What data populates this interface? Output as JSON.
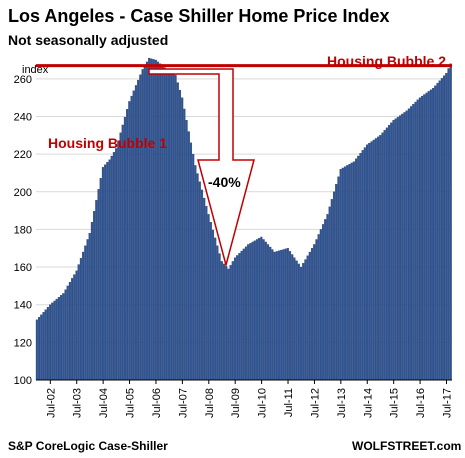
{
  "chart_data": {
    "type": "bar",
    "title": "Los Angeles - Case Shiller Home Price Index",
    "subtitle": "Not seasonally adjusted",
    "ylabel": "index",
    "ylim": [
      100,
      270
    ],
    "yticks": [
      100,
      120,
      140,
      160,
      180,
      200,
      220,
      240,
      260
    ],
    "xticks": [
      "Jul-02",
      "Jul-03",
      "Jul-04",
      "Jul-05",
      "Jul-06",
      "Jul-07",
      "Jul-08",
      "Jul-09",
      "Jul-10",
      "Jul-11",
      "Jul-12",
      "Jul-13",
      "Jul-14",
      "Jul-15",
      "Jul-16",
      "Jul-17"
    ],
    "series_color": "#2f5597",
    "reference_line": {
      "value": 267,
      "color": "#c00000",
      "label": "Housing Bubble 2"
    },
    "annotations": {
      "bubble1": "Housing Bubble 1",
      "drop": "-40%"
    },
    "source": "S&P CoreLogic Case-Shiller",
    "brand": "WOLFSTREET.com",
    "anchors": [
      [
        "2002-01",
        132
      ],
      [
        "2002-07",
        140
      ],
      [
        "2003-01",
        146
      ],
      [
        "2003-07",
        158
      ],
      [
        "2004-01",
        178
      ],
      [
        "2004-07",
        213
      ],
      [
        "2004-10",
        217
      ],
      [
        "2005-01",
        223
      ],
      [
        "2005-07",
        248
      ],
      [
        "2006-01",
        265
      ],
      [
        "2006-04",
        271
      ],
      [
        "2006-07",
        270
      ],
      [
        "2007-01",
        264
      ],
      [
        "2007-04",
        262
      ],
      [
        "2007-07",
        250
      ],
      [
        "2008-01",
        214
      ],
      [
        "2008-07",
        188
      ],
      [
        "2009-01",
        163
      ],
      [
        "2009-04",
        159
      ],
      [
        "2009-07",
        165
      ],
      [
        "2010-01",
        172
      ],
      [
        "2010-07",
        176
      ],
      [
        "2011-01",
        168
      ],
      [
        "2011-07",
        170
      ],
      [
        "2012-01",
        160
      ],
      [
        "2012-07",
        172
      ],
      [
        "2013-01",
        188
      ],
      [
        "2013-07",
        212
      ],
      [
        "2014-01",
        216
      ],
      [
        "2014-07",
        225
      ],
      [
        "2015-01",
        230
      ],
      [
        "2015-07",
        238
      ],
      [
        "2016-01",
        243
      ],
      [
        "2016-07",
        250
      ],
      [
        "2017-01",
        255
      ],
      [
        "2017-07",
        263
      ],
      [
        "2017-09",
        268
      ]
    ]
  }
}
